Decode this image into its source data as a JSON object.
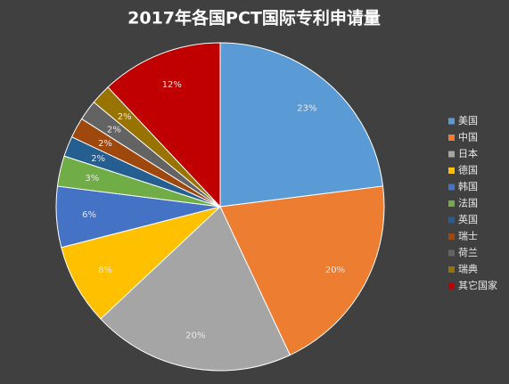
{
  "chart_data": {
    "type": "pie",
    "title": "2017年各国PCT国际专利申请量",
    "categories": [
      "美国",
      "中国",
      "日本",
      "德国",
      "韩国",
      "法国",
      "英国",
      "瑞士",
      "荷兰",
      "瑞典",
      "其它国家"
    ],
    "values": [
      23,
      20,
      20,
      8,
      6,
      3,
      2,
      2,
      2,
      2,
      12
    ],
    "value_labels": [
      "23%",
      "20%",
      "20%",
      "8%",
      "6%",
      "3%",
      "2%",
      "2%",
      "2%",
      "2%",
      "12%"
    ],
    "colors": [
      "#5b9bd5",
      "#ed7d31",
      "#a5a5a5",
      "#ffc000",
      "#4472c4",
      "#70ad47",
      "#255e91",
      "#9e480e",
      "#636363",
      "#997300",
      "#c00000"
    ],
    "legend": "right"
  }
}
